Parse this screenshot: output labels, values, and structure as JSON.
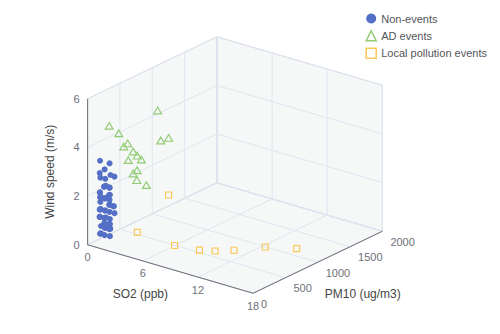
{
  "chart_data": {
    "type": "scatter3d",
    "xlabel": "SO2 (ppb)",
    "ylabel": "PM10 (ug/m3)",
    "zlabel": "Wind speed (m/s)",
    "xlim": [
      0,
      18
    ],
    "ylim": [
      0,
      2000
    ],
    "zlim": [
      0,
      6
    ],
    "xticks": [
      0,
      6,
      12,
      18
    ],
    "yticks": [
      0,
      500,
      1000,
      1500,
      2000
    ],
    "zticks": [
      0,
      2,
      4,
      6
    ],
    "grid": true,
    "legend": "upper right",
    "series": [
      {
        "name": "Non-events",
        "marker": "circle",
        "x": [
          1.0,
          1.5,
          2.0,
          1.0,
          2.0,
          1.5,
          2.5,
          1.0,
          2.0,
          1.5,
          1.0,
          2.0,
          1.5,
          2.0,
          1.0,
          1.5,
          2.0,
          1.0,
          2.5,
          1.0,
          2.0,
          1.5,
          1.0,
          2.0,
          1.5,
          1.0,
          2.0,
          1.5,
          2.0,
          1.0,
          1.5,
          2.0,
          1.0,
          2.0,
          1.5,
          1.0,
          2.5,
          1.5,
          2.0,
          1.0,
          2.0,
          1.5,
          1.0,
          2.0,
          1.5,
          1.0,
          2.0,
          1.5,
          2.0,
          1.0,
          1.5,
          2.0,
          1.0,
          2.0,
          1.5,
          1.0,
          2.5,
          1.5,
          2.0,
          1.0,
          1.5,
          2.0,
          1.0,
          2.0,
          1.5
        ],
        "y": [
          50,
          60,
          55,
          45,
          70,
          65,
          50,
          55,
          60,
          40,
          50,
          55,
          45,
          60,
          65,
          70,
          50,
          55,
          60,
          45,
          50,
          55,
          60,
          65,
          70,
          45,
          50,
          55,
          60,
          55,
          45,
          50,
          60,
          65,
          55,
          50,
          45,
          60,
          55,
          50,
          55,
          60,
          45,
          50,
          55,
          50,
          60,
          55,
          45,
          50,
          55,
          60,
          65,
          50,
          45,
          55,
          60,
          50,
          55,
          45,
          50,
          55,
          60,
          55,
          50
        ],
        "z": [
          3.5,
          2.8,
          2.5,
          2.2,
          3.0,
          2.0,
          1.8,
          1.5,
          1.2,
          2.5,
          2.0,
          1.5,
          1.2,
          1.0,
          0.8,
          2.5,
          2.2,
          1.8,
          1.5,
          1.2,
          1.0,
          0.8,
          0.5,
          0.8,
          1.2,
          1.5,
          1.8,
          2.0,
          2.2,
          1.5,
          1.0,
          0.8,
          0.5,
          0.8,
          1.2,
          1.5,
          1.8,
          2.0,
          2.5,
          2.2,
          1.8,
          1.5,
          1.2,
          1.0,
          0.8,
          0.5,
          0.5,
          0.8,
          1.0,
          1.2,
          1.5,
          1.8,
          2.0,
          2.2,
          2.5,
          2.8,
          3.0,
          3.2,
          3.5,
          3.0,
          2.5,
          2.0,
          1.5,
          1.0,
          0.5
        ]
      },
      {
        "name": "AD events",
        "marker": "triangle-open",
        "x": [
          2.0,
          3.0,
          4.0,
          3.5,
          4.5,
          5.0,
          5.5,
          4.0,
          5.0,
          4.5,
          5.0,
          6.0,
          5.5,
          6.0,
          5.5
        ],
        "y": [
          50,
          55,
          50,
          60,
          65,
          55,
          50,
          60,
          55,
          65,
          50,
          55,
          300,
          400,
          350
        ],
        "z": [
          5.0,
          4.8,
          4.5,
          4.3,
          4.2,
          4.1,
          4.0,
          3.8,
          3.5,
          3.3,
          3.1,
          3.0,
          5.7,
          4.5,
          4.4
        ]
      },
      {
        "name": "Local pollution events",
        "marker": "square-open",
        "x": [
          4.0,
          7.0,
          9.0,
          10.0,
          11.0,
          13.0,
          6.0,
          15.0
        ],
        "y": [
          200,
          350,
          450,
          550,
          700,
          900,
          400,
          1100
        ],
        "z": [
          0.7,
          0.3,
          0.2,
          0.15,
          0.1,
          0.2,
          2.2,
          0.1
        ]
      }
    ]
  }
}
